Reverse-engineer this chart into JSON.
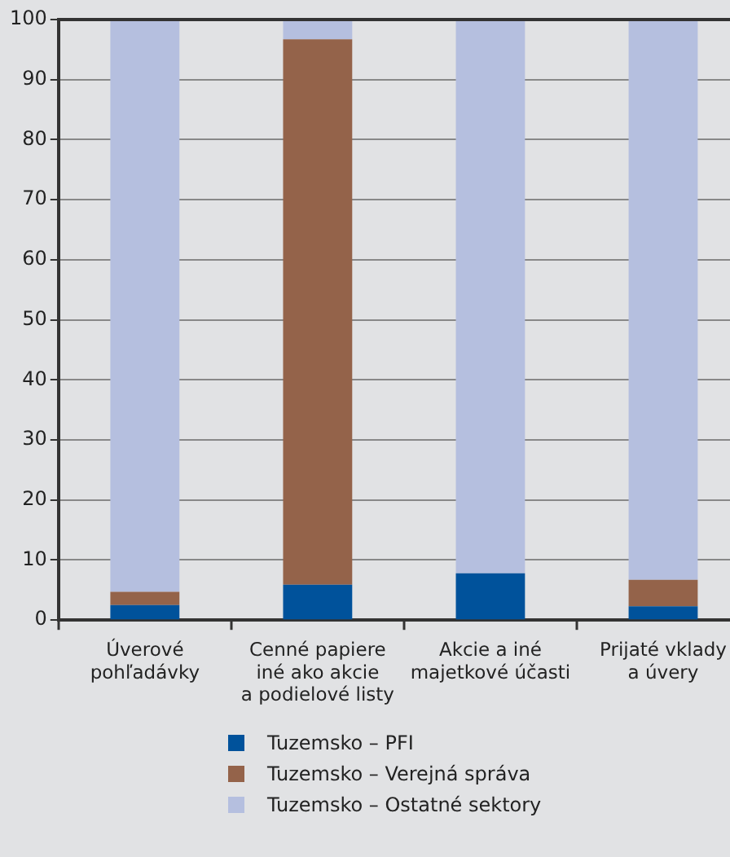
{
  "chart_data": {
    "type": "bar",
    "stacked": true,
    "categories": [
      "Úverové\npohľadávky",
      "Cenné papiere\niné ako akcie\na podielové listy",
      "Akcie a iné\nmajetkové účasti",
      "Prijaté vklady\na úvery"
    ],
    "series": [
      {
        "name": "Tuzemsko – PFI",
        "color": "#00529b",
        "values": [
          2.5,
          5.9,
          7.8,
          2.3
        ]
      },
      {
        "name": "Tuzemsko – Verejná správa",
        "color": "#94634a",
        "values": [
          2.2,
          90.8,
          0,
          4.4
        ]
      },
      {
        "name": "Tuzemsko – Ostatné sektory",
        "color": "#b5bfdf",
        "values": [
          95.3,
          3.3,
          92.2,
          93.3
        ]
      }
    ],
    "ylim": [
      0,
      100
    ],
    "yticks": [
      0,
      10,
      20,
      30,
      40,
      50,
      60,
      70,
      80,
      90,
      100
    ],
    "grid": "y",
    "legend": "bottom"
  }
}
